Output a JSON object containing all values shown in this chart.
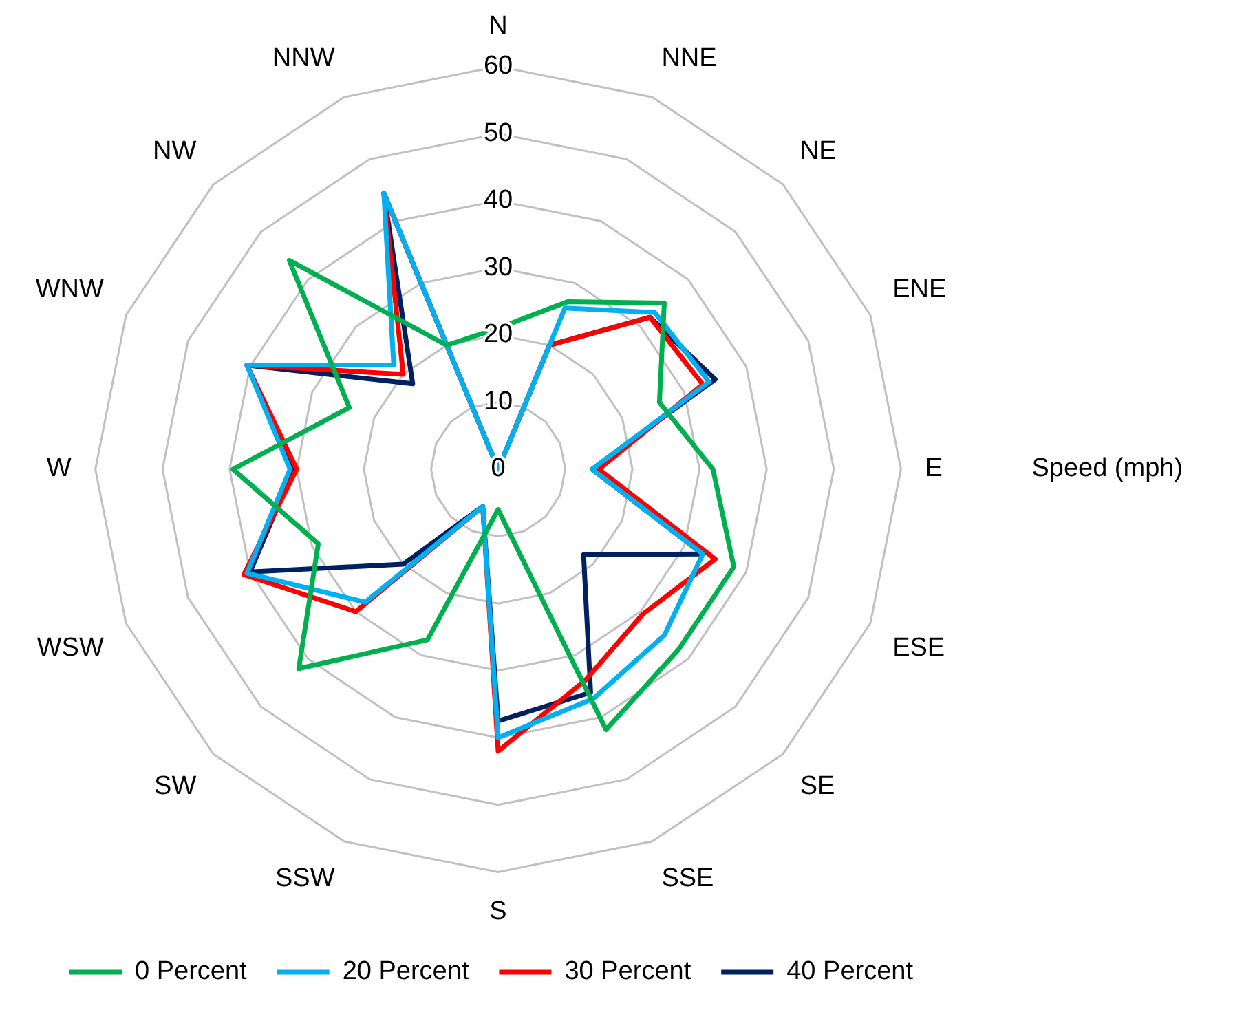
{
  "chart_data": {
    "type": "radar",
    "ylabel": "Speed (mph)",
    "categories": [
      "N",
      "NNE",
      "NE",
      "ENE",
      "E",
      "ESE",
      "SE",
      "SSE",
      "S",
      "SSW",
      "SW",
      "WSW",
      "W",
      "WNW",
      "NW",
      "NNW"
    ],
    "series": [
      {
        "name": "0 Percent",
        "color": "#00b050",
        "values": [
          21,
          27,
          35,
          26,
          32,
          38,
          38,
          42,
          6,
          27.5,
          42,
          29,
          39.5,
          24,
          44,
          20
        ]
      },
      {
        "name": "20 Percent",
        "color": "#00b0f0",
        "values": [
          0,
          26,
          33,
          34,
          14,
          33,
          35,
          37,
          40,
          6,
          28,
          40.5,
          31,
          40.5,
          22,
          44.5
        ]
      },
      {
        "name": "30 Percent",
        "color": "#ff0000",
        "values": [
          0,
          20,
          32,
          33,
          15,
          35,
          30.5,
          34,
          42,
          6,
          30,
          41,
          30,
          40.5,
          20,
          44.5
        ]
      },
      {
        "name": "40 Percent",
        "color": "#002060",
        "values": [
          0,
          20,
          32,
          35,
          14,
          33,
          18,
          36,
          37.5,
          6,
          20,
          40,
          30.5,
          40.5,
          18,
          44.5
        ]
      }
    ],
    "ylim": [
      0,
      60
    ],
    "yticks": [
      0,
      10,
      20,
      30,
      40,
      50,
      60
    ],
    "grid": true,
    "legend": "bottom"
  }
}
